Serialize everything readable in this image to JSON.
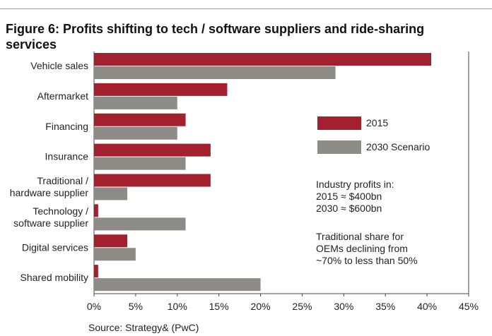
{
  "chart_data": {
    "type": "hbar",
    "title": "Figure 6: Profits shifting to tech / software suppliers and ride-sharing\nservices",
    "categories": [
      "Vehicle sales",
      "Aftermarket",
      "Financing",
      "Insurance",
      "Traditional /\nhardware supplier",
      "Technology /\nsoftware supplier",
      "Digital services",
      "Shared mobility"
    ],
    "series": [
      {
        "name": "2015",
        "color": "#a3212f",
        "values": [
          40.5,
          16,
          11,
          14,
          14,
          0.5,
          4,
          0.5
        ]
      },
      {
        "name": "2030 Scenario",
        "color": "#8d8b86",
        "values": [
          29,
          10,
          10,
          11,
          4,
          11,
          5,
          20
        ]
      }
    ],
    "xlim": [
      0,
      45
    ],
    "xticks": [
      {
        "value": 0,
        "label": "0%"
      },
      {
        "value": 5,
        "label": "5%"
      },
      {
        "value": 10,
        "label": "10%"
      },
      {
        "value": 15,
        "label": "15%"
      },
      {
        "value": 20,
        "label": "20%"
      },
      {
        "value": 25,
        "label": "25%"
      },
      {
        "value": 30,
        "label": "30%"
      },
      {
        "value": 35,
        "label": "35%"
      },
      {
        "value": 40,
        "label": "40%"
      },
      {
        "value": 45,
        "label": "45%"
      }
    ],
    "annotations": [
      "Industry profits in:\n2015 ≈ $400bn\n2030 ≈ $600bn",
      "Traditional share for\nOEMs declining from\n~70% to less than 50%"
    ],
    "source": "Source: Strategy& (PwC)"
  }
}
